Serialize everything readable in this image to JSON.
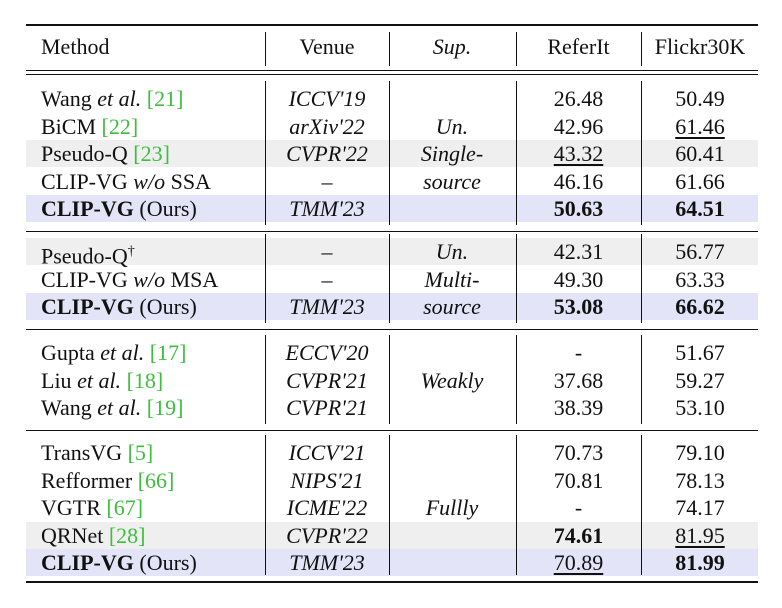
{
  "headers": {
    "method": "Method",
    "venue": "Venue",
    "sup": "Sup.",
    "referit": "ReferIt",
    "flickr": "Flickr30K"
  },
  "groups": [
    {
      "sup_lines": [
        "Un.",
        "Single-",
        "source"
      ],
      "rows": [
        {
          "pre": "Wang ",
          "em": "et al.",
          "post": " ",
          "ref": "[21]",
          "venue": "ICCV'19",
          "referit": "26.48",
          "flickr": "50.49",
          "bg": "none"
        },
        {
          "pre": "BiCM ",
          "em": "",
          "post": "",
          "ref": "[22]",
          "venue": "arXiv'22",
          "referit": "42.96",
          "flickr": "61.46",
          "flickr_style": "ul",
          "bg": "none"
        },
        {
          "pre": "Pseudo-Q ",
          "em": "",
          "post": "",
          "ref": "[23]",
          "venue": "CVPR'22",
          "referit": "43.32",
          "referit_style": "ul",
          "flickr": "60.41",
          "bg": "gray"
        },
        {
          "pre": "CLIP-VG ",
          "em": "w/o",
          "post": " SSA",
          "ref": "",
          "venue": "–",
          "referit": "46.16",
          "flickr": "61.66",
          "bg": "none"
        },
        {
          "pre": "CLIP-VG",
          "pre_bold": true,
          "em": "",
          "post": " (Ours)",
          "ref": "",
          "venue": "TMM'23",
          "referit": "50.63",
          "referit_style": "bd",
          "flickr": "64.51",
          "flickr_style": "bd",
          "bg": "blue"
        }
      ]
    },
    {
      "sup_lines": [
        "Un.",
        "Multi-",
        "source"
      ],
      "rows": [
        {
          "pre": "Pseudo-Q",
          "sup": "†",
          "em": "",
          "post": "",
          "ref": "",
          "venue": "–",
          "referit": "42.31",
          "flickr": "56.77",
          "bg": "gray"
        },
        {
          "pre": "CLIP-VG ",
          "em": "w/o",
          "post": " MSA",
          "ref": "",
          "venue": "–",
          "referit": "49.30",
          "flickr": "63.33",
          "bg": "none"
        },
        {
          "pre": "CLIP-VG",
          "pre_bold": true,
          "em": "",
          "post": " (Ours)",
          "ref": "",
          "venue": "TMM'23",
          "referit": "53.08",
          "referit_style": "bd",
          "flickr": "66.62",
          "flickr_style": "bd",
          "bg": "blue"
        }
      ]
    },
    {
      "sup_lines": [
        "Weakly"
      ],
      "rows": [
        {
          "pre": "Gupta ",
          "em": "et al.",
          "post": " ",
          "ref": "[17]",
          "venue": "ECCV'20",
          "referit": "-",
          "flickr": "51.67",
          "bg": "none"
        },
        {
          "pre": "Liu ",
          "em": "et al.",
          "post": " ",
          "ref": "[18]",
          "venue": "CVPR'21",
          "referit": "37.68",
          "flickr": "59.27",
          "bg": "none"
        },
        {
          "pre": "Wang ",
          "em": "et al.",
          "post": " ",
          "ref": "[19]",
          "venue": "CVPR'21",
          "referit": "38.39",
          "flickr": "53.10",
          "bg": "none"
        }
      ]
    },
    {
      "sup_lines": [
        "Fullly"
      ],
      "rows": [
        {
          "pre": "TransVG ",
          "em": "",
          "post": "",
          "ref": "[5]",
          "venue": "ICCV'21",
          "referit": "70.73",
          "flickr": "79.10",
          "bg": "none"
        },
        {
          "pre": "Refformer ",
          "em": "",
          "post": "",
          "ref": "[66]",
          "venue": "NIPS'21",
          "referit": "70.81",
          "flickr": "78.13",
          "bg": "none"
        },
        {
          "pre": "VGTR ",
          "em": "",
          "post": "",
          "ref": "[67]",
          "venue": "ICME'22",
          "referit": "-",
          "flickr": "74.17",
          "bg": "none"
        },
        {
          "pre": "QRNet ",
          "em": "",
          "post": "",
          "ref": "[28]",
          "venue": "CVPR'22",
          "referit": "74.61",
          "referit_style": "bd",
          "flickr": "81.95",
          "flickr_style": "ul",
          "bg": "gray"
        },
        {
          "pre": "CLIP-VG",
          "pre_bold": true,
          "em": "",
          "post": " (Ours)",
          "ref": "",
          "venue": "TMM'23",
          "referit": "70.89",
          "referit_style": "ul",
          "flickr": "81.99",
          "flickr_style": "bd",
          "bg": "blue"
        }
      ]
    }
  ]
}
